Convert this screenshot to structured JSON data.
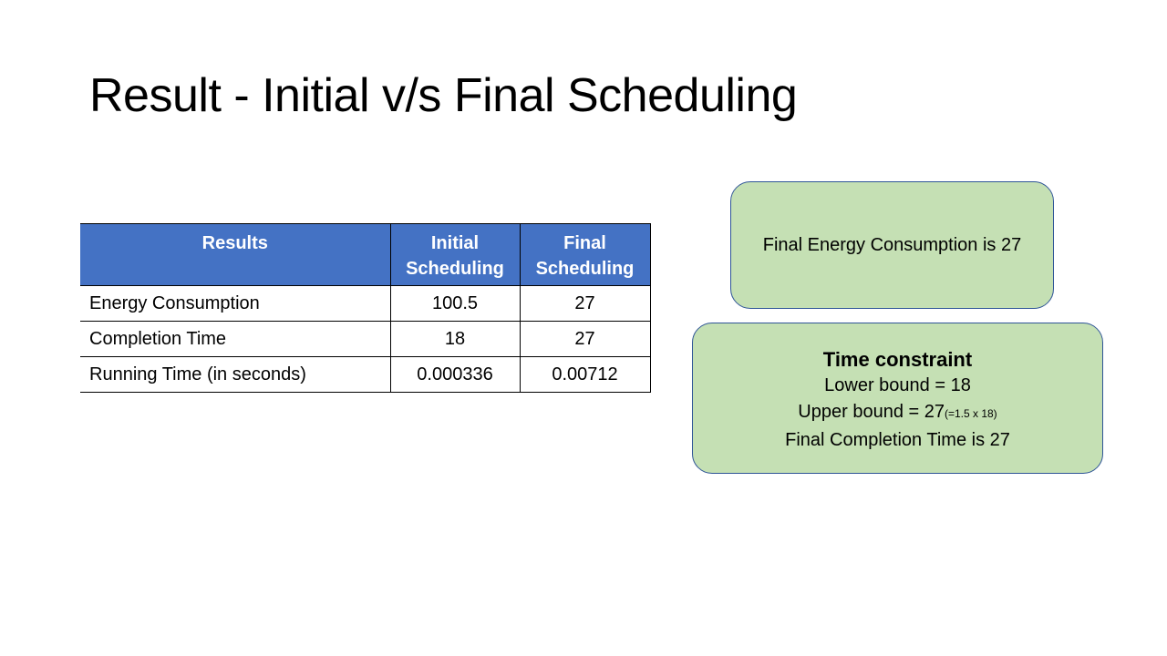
{
  "slide": {
    "title": "Result - Initial v/s Final Scheduling"
  },
  "table": {
    "headers": [
      "Results",
      "Initial Scheduling",
      "Final Scheduling"
    ],
    "header_lines": {
      "results": "Results",
      "initial_line1": "Initial",
      "initial_line2": "Scheduling",
      "final_line1": "Final",
      "final_line2": "Scheduling"
    },
    "rows": [
      {
        "label": "Energy Consumption",
        "initial": "100.5",
        "final": "27"
      },
      {
        "label": "Completion Time",
        "initial": "18",
        "final": "27"
      },
      {
        "label": "Running Time (in seconds)",
        "initial": "0.000336",
        "final": "0.00712"
      }
    ]
  },
  "energy_box": {
    "text": "Final Energy Consumption is 27"
  },
  "constraint_box": {
    "title": "Time constraint",
    "lower_bound": "Lower bound = 18",
    "upper_bound": "Upper bound = 27",
    "upper_bound_note": "(=1.5 x 18)",
    "final_completion": "Final Completion Time is 27"
  },
  "colors": {
    "header_fill": "#4472c4",
    "box_fill": "#c5e0b4",
    "box_border": "#2f5597"
  }
}
